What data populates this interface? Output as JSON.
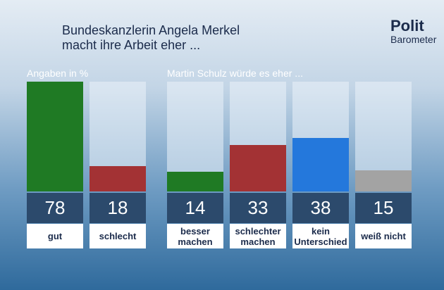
{
  "header": {
    "title": [
      "Bundeskanzlerin Angela Merkel",
      "macht ihre Arbeit eher ..."
    ],
    "logo": [
      "Polit",
      "Barometer"
    ]
  },
  "chart_data": [
    {
      "type": "bar",
      "subtitle": "Angaben in %",
      "categories": [
        "gut",
        "schlecht"
      ],
      "values": [
        78,
        18
      ],
      "colors": [
        "#1f7a24",
        "#a33234"
      ],
      "ylim": [
        0,
        78
      ]
    },
    {
      "type": "bar",
      "subtitle": "Martin Schulz würde es eher ...",
      "categories": [
        "besser\nmachen",
        "schlechter\nmachen",
        "kein\nUnterschied",
        "weiß nicht"
      ],
      "values": [
        14,
        33,
        38,
        15
      ],
      "colors": [
        "#1f7a24",
        "#a33234",
        "#2478dc",
        "#a3a3a3"
      ],
      "ylim": [
        0,
        78
      ]
    }
  ]
}
